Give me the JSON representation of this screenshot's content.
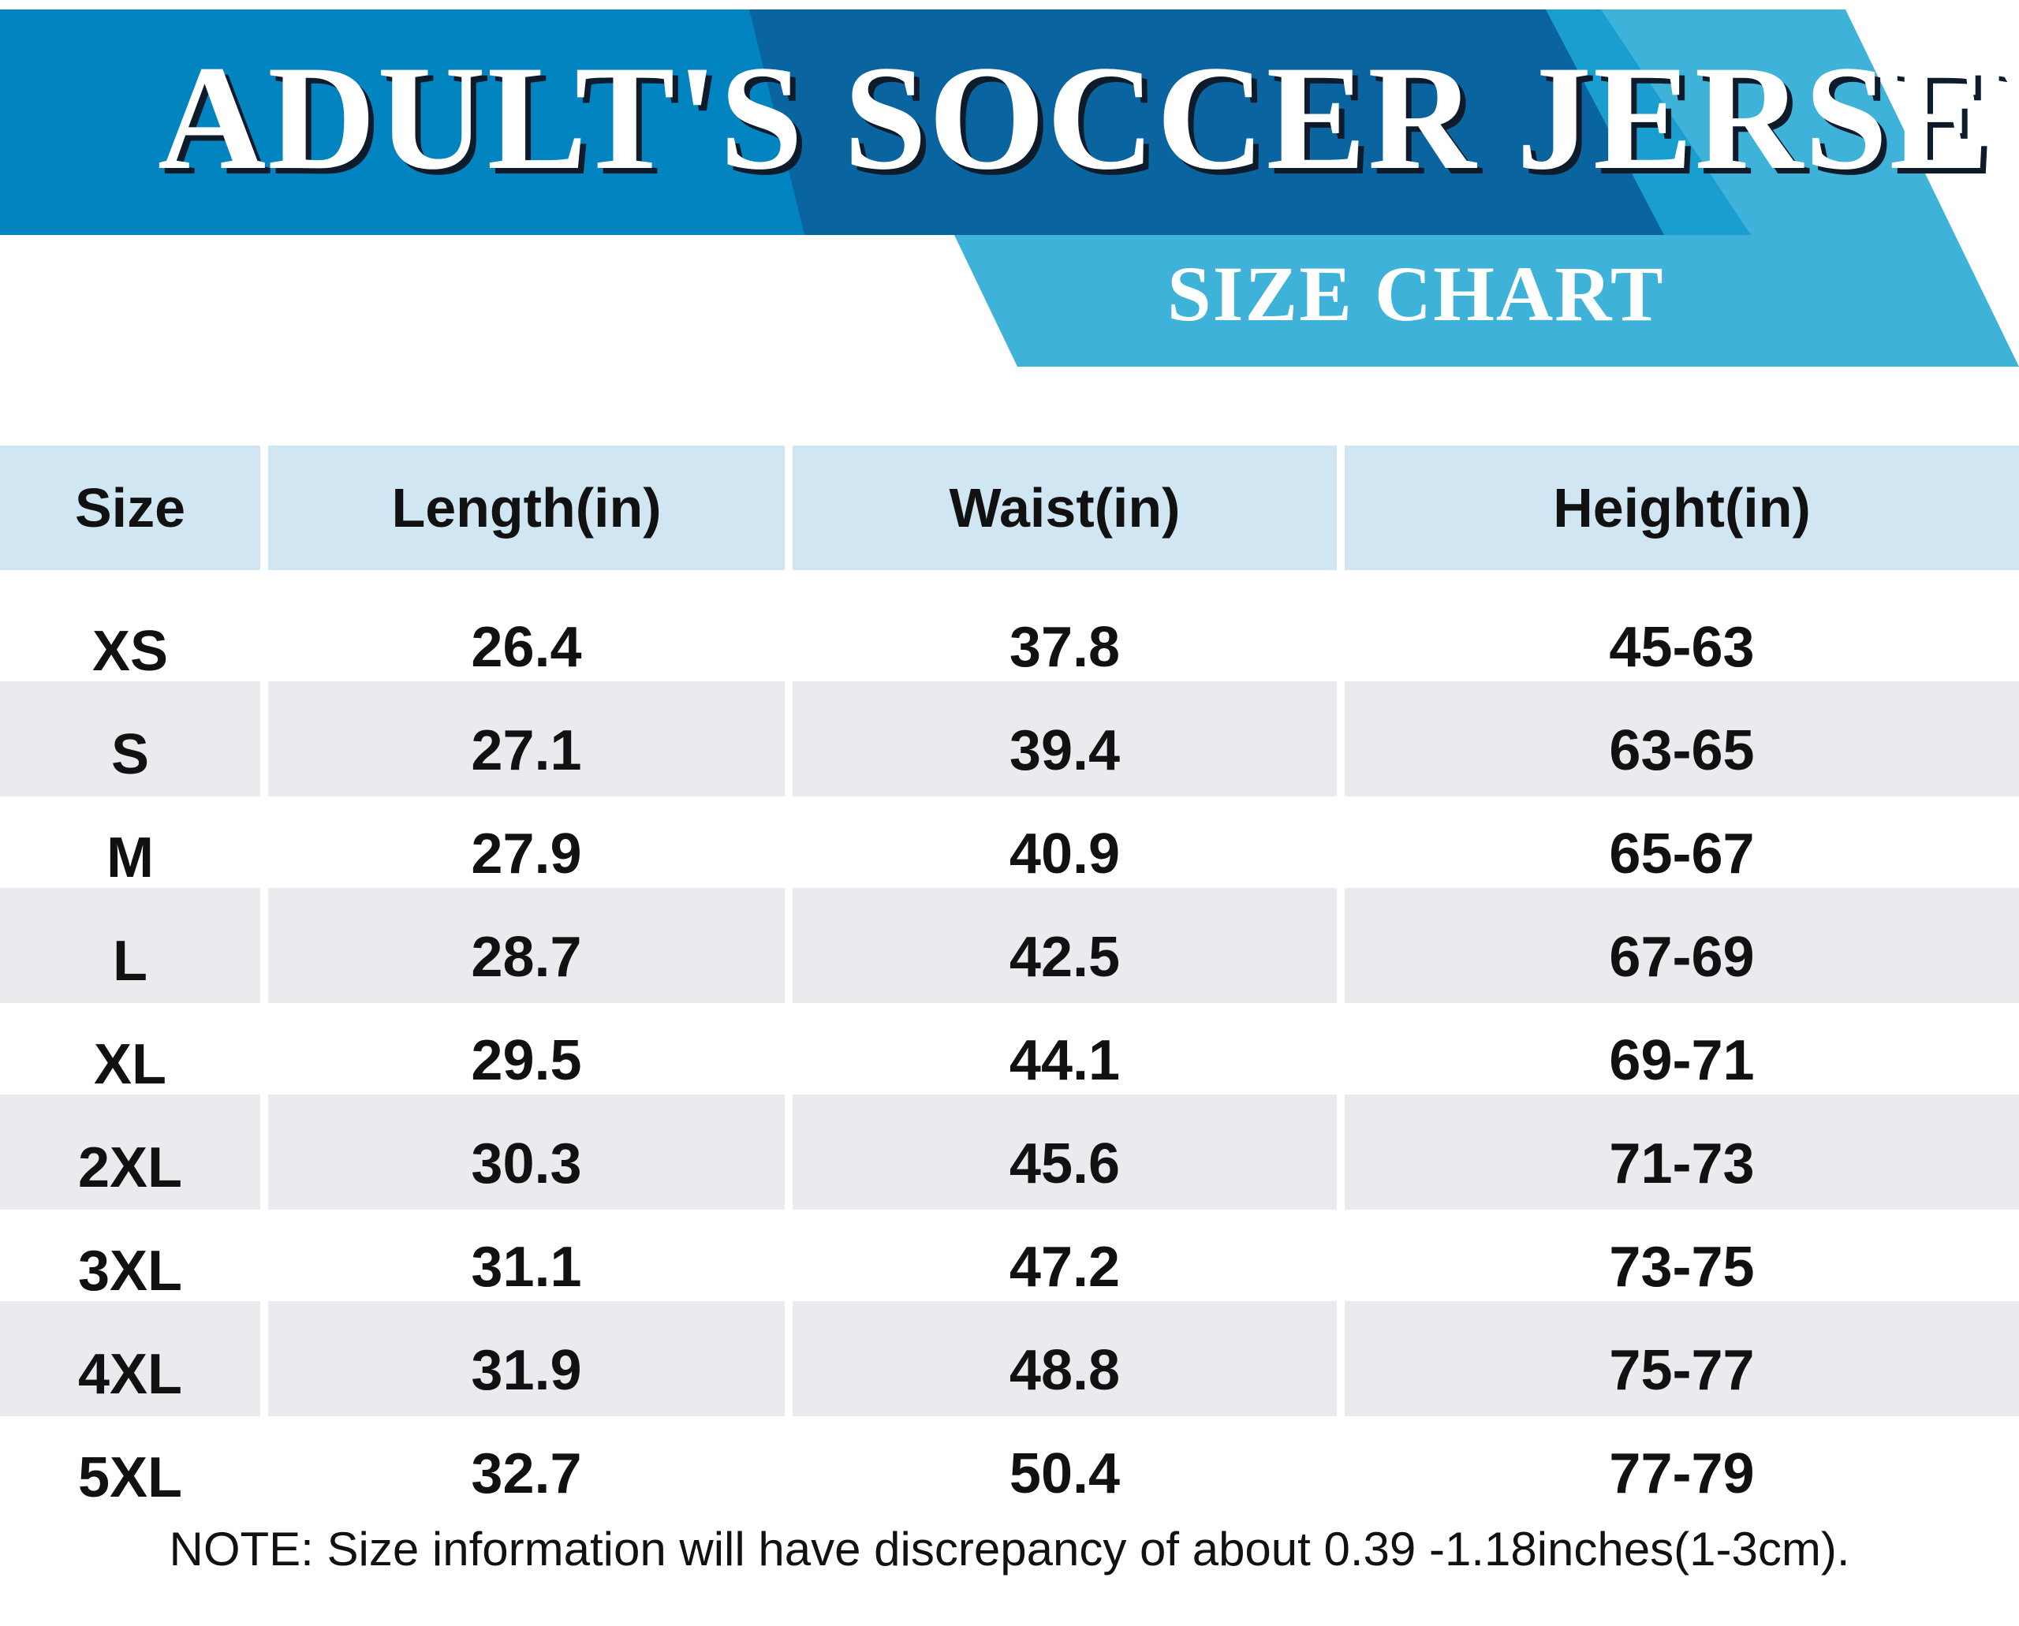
{
  "title": "ADULT'S SOCCER JERSEY",
  "subtitle": "SIZE CHART",
  "colors": {
    "banner_dark": "#0a64a0",
    "banner_mid": "#0284c0",
    "banner_light": "#3eb2d8",
    "header_bg": "#d0e6f2",
    "row_alt": "#ebebef"
  },
  "table": {
    "headers": [
      "Size",
      "Length(in)",
      "Waist(in)",
      "Height(in)"
    ],
    "rows": [
      [
        "XS",
        "26.4",
        "37.8",
        "45-63"
      ],
      [
        "S",
        "27.1",
        "39.4",
        "63-65"
      ],
      [
        "M",
        "27.9",
        "40.9",
        "65-67"
      ],
      [
        "L",
        "28.7",
        "42.5",
        "67-69"
      ],
      [
        "XL",
        "29.5",
        "44.1",
        "69-71"
      ],
      [
        "2XL",
        "30.3",
        "45.6",
        "71-73"
      ],
      [
        "3XL",
        "31.1",
        "47.2",
        "73-75"
      ],
      [
        "4XL",
        "31.9",
        "48.8",
        "75-77"
      ],
      [
        "5XL",
        "32.7",
        "50.4",
        "77-79"
      ]
    ]
  },
  "note": "NOTE: Size information will have discrepancy of about 0.39 -1.18inches(1-3cm)."
}
